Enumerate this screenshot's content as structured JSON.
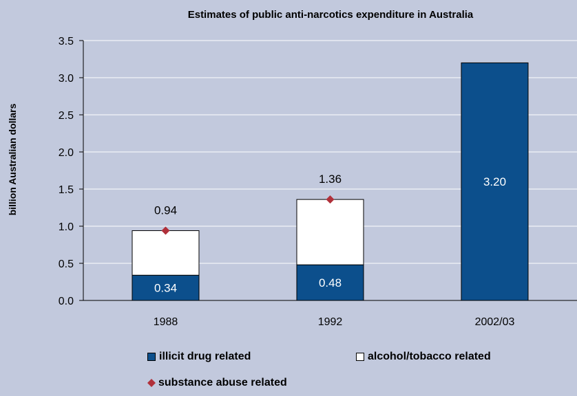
{
  "chart_data": {
    "type": "bar",
    "title": "Estimates of public anti-narcotics expenditure in Australia",
    "xlabel": "",
    "ylabel": "billion Australian dollars",
    "ylim": [
      0,
      3.5
    ],
    "yticks": [
      "0.0",
      "0.5",
      "1.0",
      "1.5",
      "2.0",
      "2.5",
      "3.0",
      "3.5"
    ],
    "categories": [
      "1988",
      "1992",
      "2002/03"
    ],
    "stacked": true,
    "grid": true,
    "series": [
      {
        "name": "illicit drug related",
        "values": [
          0.34,
          0.48,
          3.2
        ],
        "labels": [
          "0.34",
          "0.48",
          "3.20"
        ],
        "color": "#0c4f8c"
      },
      {
        "name": "alcohol/tobacco related",
        "values": [
          0.6,
          0.88,
          null
        ],
        "color": "#ffffff"
      }
    ],
    "markers": {
      "name": "substance abuse related",
      "values": [
        0.94,
        1.36,
        null
      ],
      "labels": [
        "0.94",
        "1.36",
        ""
      ],
      "color": "#b0303a"
    },
    "legend": {
      "placement": "bottom",
      "items": [
        {
          "label": "illicit drug related",
          "color": "#0c4f8c"
        },
        {
          "label": "alcohol/tobacco related",
          "color": "#ffffff"
        },
        {
          "label": "substance abuse related",
          "color": "#b0303a"
        }
      ]
    }
  }
}
